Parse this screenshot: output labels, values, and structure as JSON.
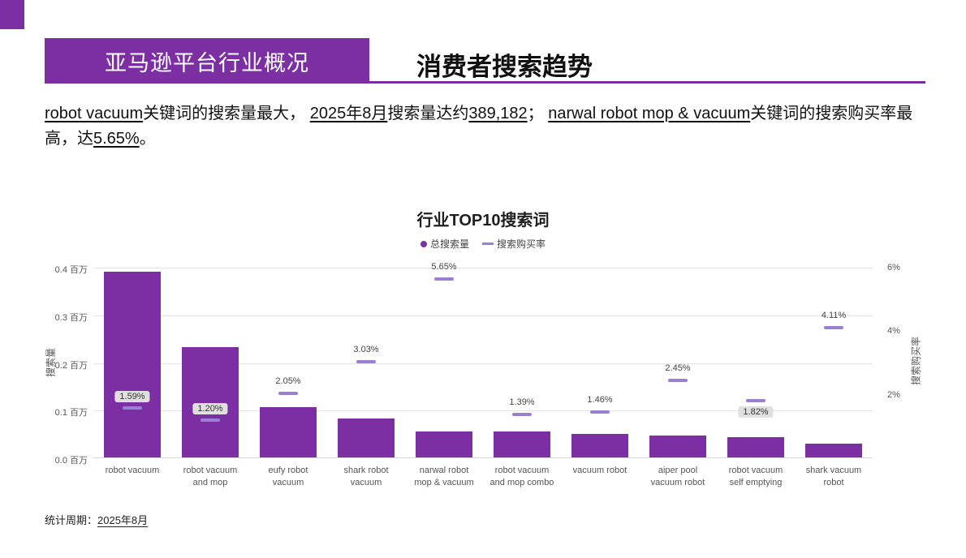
{
  "header": {
    "badge_label": "亚马逊平台行业概况",
    "title": "消费者搜索趋势"
  },
  "summary": {
    "segments": [
      {
        "text": "robot vacuum",
        "underline": true
      },
      {
        "text": "关键词的搜索量最大， ",
        "underline": false
      },
      {
        "text": "2025年8月",
        "underline": true
      },
      {
        "text": "搜索量达约",
        "underline": false
      },
      {
        "text": "389,182",
        "underline": true
      },
      {
        "text": "； ",
        "underline": false
      },
      {
        "text": "narwal robot mop & vacuum",
        "underline": true
      },
      {
        "text": "关键词的搜索购买率最高，达",
        "underline": false
      },
      {
        "text": "5.65%",
        "underline": true
      },
      {
        "text": "。",
        "underline": false
      }
    ]
  },
  "chart_data": {
    "type": "bar",
    "title": "行业TOP10搜索词",
    "legend": [
      {
        "label": "总搜索量",
        "marker": "dot",
        "color": "#7B2FA3"
      },
      {
        "label": "搜索购买率",
        "marker": "dash",
        "color": "#9B7FD4"
      }
    ],
    "categories": [
      "robot vacuum",
      "robot vacuum and mop",
      "eufy robot vacuum",
      "shark robot vacuum",
      "narwal robot mop & vacuum",
      "robot vacuum and mop combo",
      "vacuum robot",
      "aiper pool vacuum robot",
      "robot vacuum self emptying",
      "shark vacuum robot"
    ],
    "series": [
      {
        "name": "总搜索量",
        "type": "bar",
        "unit": "百万",
        "values": [
          0.389,
          0.232,
          0.105,
          0.081,
          0.054,
          0.054,
          0.049,
          0.046,
          0.043,
          0.029
        ]
      },
      {
        "name": "搜索购买率",
        "type": "marker",
        "unit": "%",
        "values": [
          1.59,
          1.2,
          2.05,
          3.03,
          5.65,
          1.39,
          1.46,
          2.45,
          1.82,
          4.11
        ],
        "labels": [
          "1.59%",
          "1.20%",
          "2.05%",
          "3.03%",
          "5.65%",
          "1.39%",
          "1.46%",
          "2.45%",
          "1.82%",
          "4.11%"
        ],
        "badge": [
          true,
          true,
          false,
          false,
          false,
          false,
          false,
          false,
          true,
          false
        ],
        "label_below": [
          false,
          false,
          false,
          false,
          false,
          false,
          false,
          false,
          true,
          false
        ]
      }
    ],
    "left_axis": {
      "label": "搜索量",
      "ticks": [
        "0.4 百万",
        "0.3 百万",
        "0.2 百万",
        "0.1 百万",
        "0.0 百万"
      ],
      "min": 0,
      "max": 0.4
    },
    "right_axis": {
      "label": "搜索购买率",
      "ticks": [
        "6%",
        "4%",
        "2%"
      ],
      "min": 0,
      "max": 6
    },
    "grid": true,
    "legend_position": "top"
  },
  "footer": {
    "label": "统计周期：",
    "value": "2025年8月"
  },
  "colors": {
    "accent": "#7B2FA3",
    "marker": "#9B7FD4",
    "badge_bg": "#E0E0E0"
  }
}
